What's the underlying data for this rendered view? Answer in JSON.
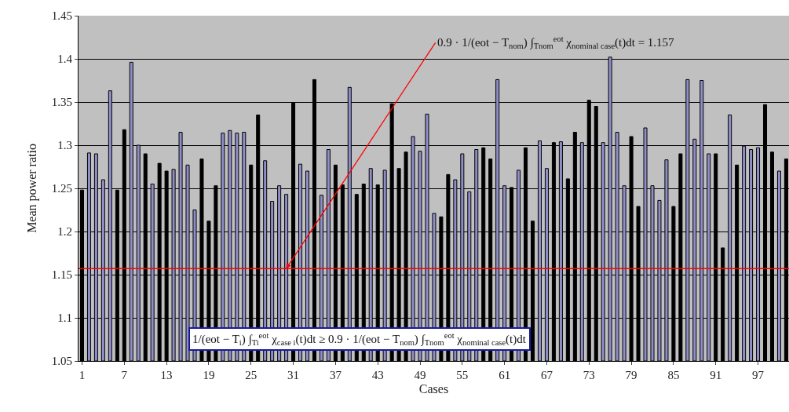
{
  "chart_data": {
    "type": "bar",
    "xlabel": "Cases",
    "ylabel": "Mean power ratio",
    "x": [
      1,
      2,
      3,
      4,
      5,
      6,
      7,
      8,
      9,
      10,
      11,
      12,
      13,
      14,
      15,
      16,
      17,
      18,
      19,
      20,
      21,
      22,
      23,
      24,
      25,
      26,
      27,
      28,
      29,
      30,
      31,
      32,
      33,
      34,
      35,
      36,
      37,
      38,
      39,
      40,
      41,
      42,
      43,
      44,
      45,
      46,
      47,
      48,
      49,
      50,
      51,
      52,
      53,
      54,
      55,
      56,
      57,
      58,
      59,
      60,
      61,
      62,
      63,
      64,
      65,
      66,
      67,
      68,
      69,
      70,
      71,
      72,
      73,
      74,
      75,
      76,
      77,
      78,
      79,
      80,
      81,
      82,
      83,
      84,
      85,
      86,
      87,
      88,
      89,
      90,
      91,
      92,
      93,
      94,
      95,
      96,
      97,
      98,
      99,
      100,
      101
    ],
    "values": [
      1.248,
      1.291,
      1.29,
      1.26,
      1.363,
      1.248,
      1.318,
      1.396,
      1.3,
      1.29,
      1.255,
      1.279,
      1.27,
      1.272,
      1.315,
      1.277,
      1.225,
      1.284,
      1.212,
      1.253,
      1.314,
      1.317,
      1.314,
      1.315,
      1.277,
      1.335,
      1.282,
      1.235,
      1.253,
      1.243,
      1.349,
      1.278,
      1.27,
      1.376,
      1.242,
      1.295,
      1.277,
      1.254,
      1.367,
      1.243,
      1.255,
      1.273,
      1.254,
      1.271,
      1.348,
      1.273,
      1.292,
      1.31,
      1.293,
      1.336,
      1.221,
      1.217,
      1.266,
      1.26,
      1.29,
      1.246,
      1.295,
      1.297,
      1.284,
      1.376,
      1.253,
      1.251,
      1.271,
      1.297,
      1.212,
      1.305,
      1.273,
      1.303,
      1.304,
      1.261,
      1.315,
      1.303,
      1.352,
      1.345,
      1.303,
      1.402,
      1.315,
      1.253,
      1.31,
      1.229,
      1.32,
      1.253,
      1.236,
      1.283,
      1.229,
      1.29,
      1.376,
      1.307,
      1.375,
      1.29,
      1.29,
      1.181,
      1.335,
      1.277,
      1.299,
      1.295,
      1.297,
      1.347,
      1.292,
      1.27,
      1.284
    ],
    "colors": [
      "#000000",
      "#8f8fc8",
      "#8f8fc8",
      "#8f8fc8",
      "#8f8fc8",
      "#000000",
      "#000000",
      "#8f8fc8",
      "#8f8fc8",
      "#000000",
      "#8f8fc8",
      "#000000",
      "#000000",
      "#8f8fc8",
      "#8f8fc8",
      "#8f8fc8",
      "#8f8fc8",
      "#000000",
      "#000000",
      "#000000",
      "#8f8fc8",
      "#8f8fc8",
      "#8f8fc8",
      "#8f8fc8",
      "#000000",
      "#000000",
      "#8f8fc8",
      "#8f8fc8",
      "#8f8fc8",
      "#8f8fc8",
      "#000000",
      "#8f8fc8",
      "#8f8fc8",
      "#000000",
      "#8f8fc8",
      "#8f8fc8",
      "#000000",
      "#000000",
      "#8f8fc8",
      "#000000",
      "#000000",
      "#8f8fc8",
      "#000000",
      "#8f8fc8",
      "#000000",
      "#000000",
      "#000000",
      "#8f8fc8",
      "#8f8fc8",
      "#8f8fc8",
      "#8f8fc8",
      "#000000",
      "#000000",
      "#8f8fc8",
      "#8f8fc8",
      "#8f8fc8",
      "#8f8fc8",
      "#000000",
      "#000000",
      "#8f8fc8",
      "#8f8fc8",
      "#000000",
      "#8f8fc8",
      "#000000",
      "#000000",
      "#8f8fc8",
      "#8f8fc8",
      "#000000",
      "#8f8fc8",
      "#000000",
      "#000000",
      "#8f8fc8",
      "#000000",
      "#000000",
      "#8f8fc8",
      "#8f8fc8",
      "#8f8fc8",
      "#8f8fc8",
      "#000000",
      "#000000",
      "#8f8fc8",
      "#8f8fc8",
      "#8f8fc8",
      "#8f8fc8",
      "#000000",
      "#000000",
      "#8f8fc8",
      "#8f8fc8",
      "#8f8fc8",
      "#8f8fc8",
      "#000000",
      "#000000",
      "#8f8fc8",
      "#000000",
      "#8f8fc8",
      "#8f8fc8",
      "#8f8fc8",
      "#000000",
      "#000000",
      "#8f8fc8",
      "#000000"
    ],
    "xlim": [
      0.5,
      101.4
    ],
    "xticks": [
      1,
      7,
      13,
      19,
      25,
      31,
      37,
      43,
      49,
      55,
      61,
      67,
      73,
      79,
      85,
      91,
      97
    ],
    "ylim": [
      1.05,
      1.45
    ],
    "yticks": [
      1.05,
      1.1,
      1.15,
      1.2,
      1.25,
      1.3,
      1.35,
      1.4,
      1.45
    ],
    "grid": "y",
    "ref_lines": [
      {
        "axis": "y",
        "value": 1.157,
        "color": "#ff0000"
      }
    ],
    "annotations": [
      {
        "text": "0.9 · 1/(eot − T$_{nom}$) ∫$_{Tnom}$$^{eot}$ χ$_{nominal case}$(t)dt = 1.157",
        "x": 30,
        "y": 1.157
      },
      "1/(eot − T$_{i}$) ∫$_{Ti}$$^{eot}$ χ$_{case i}$(t)dt ≥ 0.9 · 1/(eot − T$_{nom}$) ∫$_{Tnom}$$^{eot}$ χ$_{nominal case}$(t)dt"
    ]
  }
}
